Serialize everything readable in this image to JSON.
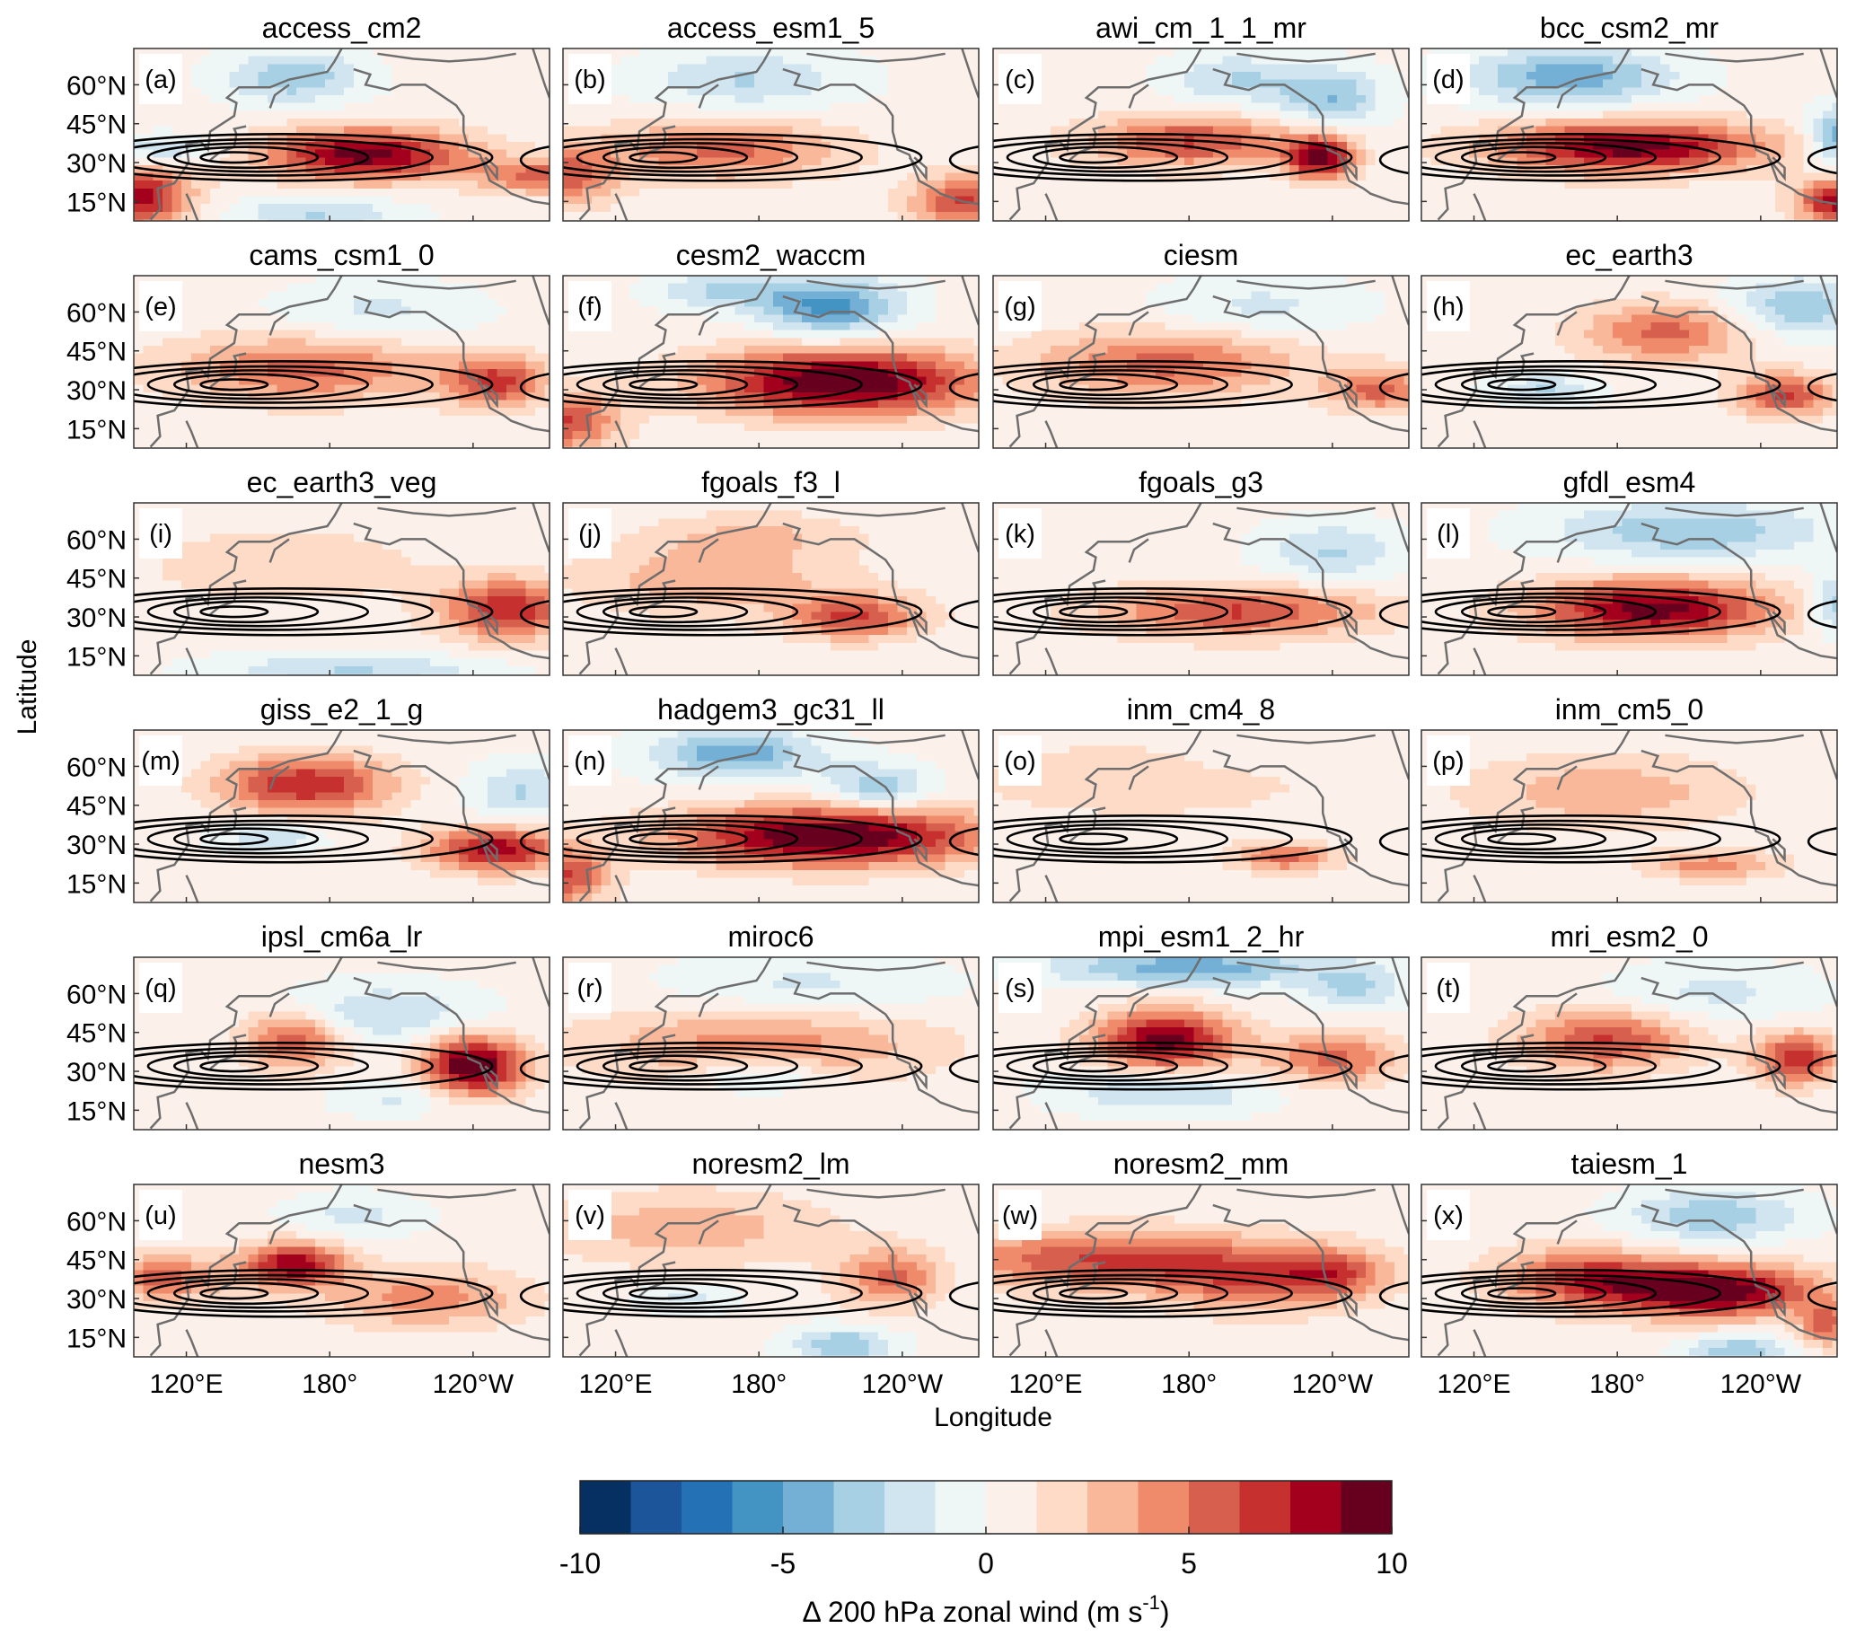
{
  "chart_data": {
    "type": "heatmap",
    "xlabel": "Longitude",
    "ylabel": "Latitude",
    "xticks": [
      "120°E",
      "180°",
      "120°W"
    ],
    "xtick_values": [
      120,
      180,
      240
    ],
    "yticks": [
      "60°N",
      "45°N",
      "30°N",
      "15°N"
    ],
    "ytick_values": [
      60,
      45,
      30,
      15
    ],
    "lon_range": [
      98,
      272
    ],
    "lat_range": [
      7.5,
      74
    ],
    "contours": "black lines: 200 hPa zonal wind climatology (jet)",
    "colorbar": {
      "min": -10,
      "max": 10,
      "step": 1.25,
      "ticks": [
        "-10",
        "-5",
        "0",
        "5",
        "10"
      ],
      "tick_values": [
        -10,
        -5,
        0,
        5,
        10
      ],
      "label_main": "Δ 200 hPa zonal wind (m s",
      "label_sup": "-1",
      "label_end": ")",
      "colors": [
        "#053061",
        "#1c5599",
        "#2471b5",
        "#4393c3",
        "#74b0d6",
        "#a7d0e4",
        "#d1e5f0",
        "#eef6f6",
        "#fcf1ea",
        "#fddbc7",
        "#f8b899",
        "#ef8a6a",
        "#d6604d",
        "#c6302f",
        "#a2001d",
        "#67001f"
      ]
    },
    "panels": [
      {
        "label": "(a)",
        "title": "access_cm2",
        "features": [
          [
            195,
            33,
            9,
            30,
            7
          ],
          [
            100,
            17,
            8,
            15,
            8
          ],
          [
            165,
            63,
            -4,
            20,
            7
          ],
          [
            175,
            10,
            -3,
            25,
            5
          ],
          [
            110,
            35,
            -3,
            15,
            4
          ],
          [
            270,
            25,
            5,
            20,
            5
          ]
        ]
      },
      {
        "label": "(b)",
        "title": "access_esm1_5",
        "features": [
          [
            165,
            35,
            5,
            35,
            8
          ],
          [
            100,
            25,
            5,
            15,
            8
          ],
          [
            265,
            15,
            6,
            15,
            7
          ],
          [
            175,
            62,
            -3,
            30,
            8
          ]
        ]
      },
      {
        "label": "(c)",
        "title": "awi_cm_1_1_mr",
        "features": [
          [
            180,
            38,
            6,
            30,
            7
          ],
          [
            235,
            32,
            9,
            10,
            6
          ],
          [
            200,
            62,
            -3,
            20,
            7
          ],
          [
            240,
            55,
            -4,
            15,
            8
          ]
        ]
      },
      {
        "label": "(d)",
        "title": "bcc_csm2_mr",
        "features": [
          [
            185,
            36,
            9,
            40,
            7
          ],
          [
            272,
            15,
            8,
            12,
            6
          ],
          [
            160,
            63,
            -5,
            30,
            8
          ],
          [
            272,
            40,
            -5,
            8,
            8
          ]
        ]
      },
      {
        "label": "(e)",
        "title": "cams_csm1_0",
        "features": [
          [
            170,
            38,
            5,
            40,
            9
          ],
          [
            250,
            33,
            6,
            15,
            7
          ],
          [
            200,
            60,
            -2,
            30,
            8
          ]
        ]
      },
      {
        "label": "(f)",
        "title": "cesm2_waccm",
        "features": [
          [
            215,
            33,
            10,
            40,
            9
          ],
          [
            100,
            18,
            6,
            15,
            8
          ],
          [
            210,
            62,
            -6,
            20,
            8
          ],
          [
            165,
            68,
            -3,
            20,
            5
          ]
        ]
      },
      {
        "label": "(g)",
        "title": "ciesm",
        "features": [
          [
            170,
            40,
            5,
            40,
            9
          ],
          [
            260,
            30,
            5,
            15,
            6
          ],
          [
            210,
            62,
            -2,
            30,
            8
          ]
        ]
      },
      {
        "label": "(h)",
        "title": "ec_earth3",
        "features": [
          [
            200,
            52,
            5,
            25,
            8
          ],
          [
            250,
            28,
            6,
            15,
            6
          ],
          [
            150,
            30,
            -3,
            15,
            4
          ],
          [
            255,
            62,
            -4,
            20,
            8
          ]
        ]
      },
      {
        "label": "(i)",
        "title": "ec_earth3_veg",
        "features": [
          [
            255,
            33,
            7,
            20,
            8
          ],
          [
            160,
            50,
            2,
            40,
            10
          ],
          [
            190,
            10,
            -3,
            40,
            4
          ]
        ]
      },
      {
        "label": "(j)",
        "title": "fgoals_f3_l",
        "features": [
          [
            220,
            30,
            6,
            20,
            6
          ],
          [
            160,
            45,
            3,
            40,
            10
          ],
          [
            180,
            62,
            2,
            30,
            6
          ]
        ]
      },
      {
        "label": "(k)",
        "title": "fgoals_g3",
        "features": [
          [
            200,
            32,
            6,
            40,
            7
          ],
          [
            240,
            55,
            -3,
            20,
            8
          ]
        ]
      },
      {
        "label": "(l)",
        "title": "gfdl_esm4",
        "features": [
          [
            195,
            33,
            9,
            35,
            8
          ],
          [
            210,
            63,
            -4,
            40,
            8
          ],
          [
            272,
            35,
            -4,
            8,
            8
          ]
        ]
      },
      {
        "label": "(m)",
        "title": "giss_e2_1_g",
        "features": [
          [
            170,
            53,
            7,
            25,
            8
          ],
          [
            250,
            28,
            8,
            20,
            6
          ],
          [
            260,
            50,
            -3,
            15,
            8
          ],
          [
            155,
            33,
            -3,
            15,
            4
          ]
        ]
      },
      {
        "label": "(n)",
        "title": "hadgem3_gc31_ll",
        "features": [
          [
            210,
            33,
            10,
            45,
            8
          ],
          [
            170,
            65,
            -5,
            25,
            7
          ],
          [
            230,
            52,
            -4,
            15,
            6
          ],
          [
            100,
            18,
            6,
            12,
            8
          ]
        ]
      },
      {
        "label": "(o)",
        "title": "inm_cm4_8",
        "features": [
          [
            220,
            25,
            5,
            15,
            4
          ],
          [
            160,
            55,
            2,
            50,
            10
          ],
          [
            200,
            65,
            -1,
            20,
            6
          ]
        ]
      },
      {
        "label": "(p)",
        "title": "inm_cm5_0",
        "features": [
          [
            175,
            50,
            3,
            40,
            10
          ],
          [
            220,
            22,
            4,
            20,
            4
          ]
        ]
      },
      {
        "label": "(q)",
        "title": "ipsl_cm6a_lr",
        "features": [
          [
            240,
            32,
            10,
            15,
            8
          ],
          [
            165,
            42,
            6,
            15,
            8
          ],
          [
            200,
            52,
            -3,
            30,
            8
          ],
          [
            210,
            20,
            -2,
            20,
            5
          ]
        ]
      },
      {
        "label": "(r)",
        "title": "miroc6",
        "features": [
          [
            180,
            40,
            4,
            50,
            10
          ],
          [
            180,
            28,
            -3,
            20,
            5
          ],
          [
            200,
            63,
            -2,
            40,
            8
          ]
        ]
      },
      {
        "label": "(s)",
        "title": "mpi_esm1_2_hr",
        "features": [
          [
            170,
            42,
            9,
            20,
            8
          ],
          [
            240,
            35,
            5,
            20,
            7
          ],
          [
            180,
            70,
            -5,
            40,
            5
          ],
          [
            170,
            22,
            -3,
            30,
            6
          ],
          [
            250,
            62,
            -3,
            15,
            6
          ]
        ]
      },
      {
        "label": "(t)",
        "title": "mri_esm2_0",
        "features": [
          [
            175,
            42,
            6,
            25,
            8
          ],
          [
            255,
            35,
            7,
            12,
            7
          ],
          [
            220,
            60,
            -2,
            30,
            8
          ]
        ]
      },
      {
        "label": "(u)",
        "title": "nesm3",
        "features": [
          [
            165,
            43,
            8,
            15,
            6
          ],
          [
            110,
            38,
            5,
            20,
            6
          ],
          [
            220,
            30,
            4,
            30,
            8
          ],
          [
            190,
            62,
            -2,
            20,
            6
          ]
        ]
      },
      {
        "label": "(v)",
        "title": "noresm2_lm",
        "features": [
          [
            150,
            57,
            3,
            40,
            10
          ],
          [
            235,
            38,
            5,
            15,
            8
          ],
          [
            215,
            12,
            -4,
            15,
            5
          ],
          [
            150,
            30,
            -2,
            15,
            4
          ]
        ]
      },
      {
        "label": "(w)",
        "title": "noresm2_mm",
        "features": [
          [
            150,
            45,
            6,
            55,
            8
          ],
          [
            210,
            35,
            4,
            30,
            8
          ],
          [
            240,
            40,
            4,
            15,
            6
          ]
        ]
      },
      {
        "label": "(x)",
        "title": "taiesm_1",
        "features": [
          [
            220,
            33,
            10,
            30,
            7
          ],
          [
            165,
            38,
            6,
            25,
            8
          ],
          [
            220,
            62,
            -4,
            25,
            7
          ],
          [
            230,
            10,
            -4,
            15,
            4
          ],
          [
            268,
            20,
            5,
            8,
            6
          ]
        ]
      }
    ],
    "feature_fields": [
      "lon",
      "lat",
      "delta_u_m_s",
      "lon_spread_deg",
      "lat_spread_deg"
    ]
  }
}
